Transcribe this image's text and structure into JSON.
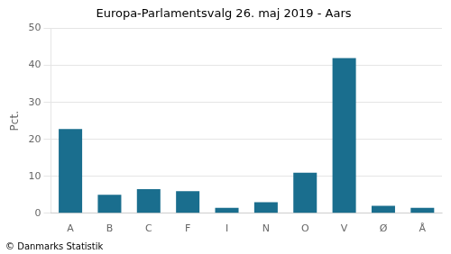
{
  "chart_data": {
    "type": "bar",
    "title": "Europa-Parlamentsvalg 26. maj 2019 - Aars",
    "categories": [
      "A",
      "B",
      "C",
      "F",
      "I",
      "N",
      "O",
      "V",
      "Ø",
      "Å"
    ],
    "values": [
      22.8,
      5.0,
      6.5,
      6.0,
      1.5,
      3.0,
      11.0,
      42.0,
      2.0,
      1.5
    ],
    "color": "#1a6e8e",
    "ylim": [
      0,
      50
    ],
    "yticks": [
      0,
      10,
      20,
      30,
      40,
      50
    ],
    "ylabel": "Pct.",
    "annotations": [
      "© Danmarks Statistik"
    ],
    "grid": true
  }
}
